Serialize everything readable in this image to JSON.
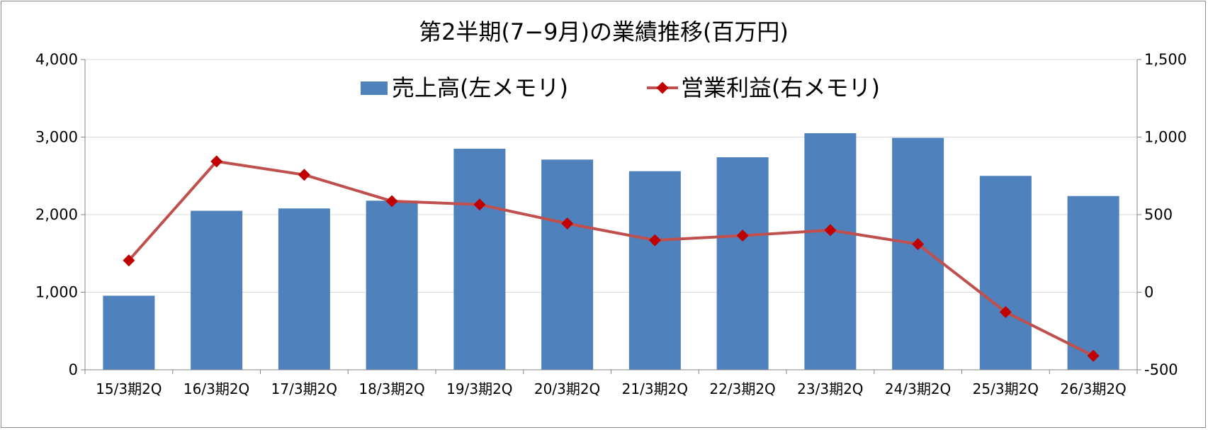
{
  "chart_data": {
    "type": "bar+line",
    "title": "第2半期(7−9月)の業績推移(百万円)",
    "categories": [
      "15/3期2Q",
      "16/3期2Q",
      "17/3期2Q",
      "18/3期2Q",
      "19/3期2Q",
      "20/3期2Q",
      "21/3期2Q",
      "22/3期2Q",
      "23/3期2Q",
      "24/3期2Q",
      "25/3期2Q",
      "26/3期2Q"
    ],
    "series": [
      {
        "name": "売上高(左メモリ)",
        "type": "bar",
        "axis": "left",
        "color": "#4f81bd",
        "values": [
          955,
          2050,
          2080,
          2180,
          2850,
          2710,
          2560,
          2740,
          3050,
          2990,
          2500,
          2240
        ]
      },
      {
        "name": "営業利益(右メモリ)",
        "type": "line",
        "axis": "right",
        "color": "#c0504d",
        "marker_color": "#c00000",
        "values": [
          205,
          843,
          757,
          587,
          565,
          443,
          335,
          365,
          400,
          310,
          -128,
          -410
        ]
      }
    ],
    "y_left": {
      "min": 0,
      "max": 4000,
      "ticks": [
        0,
        1000,
        2000,
        3000,
        4000
      ],
      "tick_labels": [
        "0",
        "1,000",
        "2,000",
        "3,000",
        "4,000"
      ]
    },
    "y_right": {
      "min": -500,
      "max": 1500,
      "ticks": [
        -500,
        0,
        500,
        1000,
        1500
      ],
      "tick_labels": [
        "-500",
        "0",
        "500",
        "1,000",
        "1,500"
      ],
      "negative_color": "#ff0000"
    },
    "grid": true,
    "legend_position": "top"
  }
}
